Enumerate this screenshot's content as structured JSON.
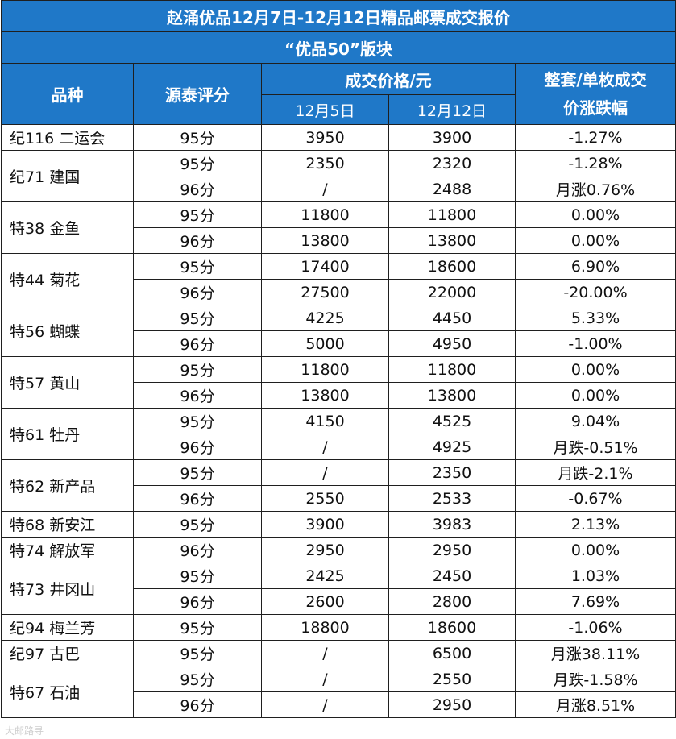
{
  "title": "赵涌优品12月7日-12月12日精品邮票成交报价",
  "subtitle": "“优品50”版块",
  "headers": {
    "variety": "品种",
    "score": "源泰评分",
    "price": "成交价格/元",
    "date1": "12月5日",
    "date2": "12月12日",
    "change_line1": "整套/单枚成交",
    "change_line2": "价涨跌幅"
  },
  "rows": [
    {
      "name": "纪116 二运会",
      "span": 1,
      "score": "95分",
      "p1": "3950",
      "p2": "3900",
      "change": "-1.27%",
      "dir": "neg"
    },
    {
      "name": "纪71 建国",
      "span": 2,
      "score": "95分",
      "p1": "2350",
      "p2": "2320",
      "change": "-1.28%",
      "dir": "neg"
    },
    {
      "name": "",
      "span": 0,
      "score": "96分",
      "p1": "/",
      "p2": "2488",
      "change": "月涨0.76%",
      "dir": "pos"
    },
    {
      "name": "特38 金鱼",
      "span": 2,
      "score": "95分",
      "p1": "11800",
      "p2": "11800",
      "change": "0.00%",
      "dir": "flat"
    },
    {
      "name": "",
      "span": 0,
      "score": "96分",
      "p1": "13800",
      "p2": "13800",
      "change": "0.00%",
      "dir": "flat"
    },
    {
      "name": "特44 菊花",
      "span": 2,
      "score": "95分",
      "p1": "17400",
      "p2": "18600",
      "change": "6.90%",
      "dir": "pos"
    },
    {
      "name": "",
      "span": 0,
      "score": "96分",
      "p1": "27500",
      "p2": "22000",
      "change": "-20.00%",
      "dir": "neg"
    },
    {
      "name": "特56 蝴蝶",
      "span": 2,
      "score": "95分",
      "p1": "4225",
      "p2": "4450",
      "change": "5.33%",
      "dir": "pos"
    },
    {
      "name": "",
      "span": 0,
      "score": "96分",
      "p1": "5000",
      "p2": "4950",
      "change": "-1.00%",
      "dir": "neg"
    },
    {
      "name": "特57 黄山",
      "span": 2,
      "score": "95分",
      "p1": "11800",
      "p2": "11800",
      "change": "0.00%",
      "dir": "flat"
    },
    {
      "name": "",
      "span": 0,
      "score": "96分",
      "p1": "13800",
      "p2": "13800",
      "change": "0.00%",
      "dir": "flat"
    },
    {
      "name": "特61 牡丹",
      "span": 2,
      "score": "95分",
      "p1": "4150",
      "p2": "4525",
      "change": "9.04%",
      "dir": "pos"
    },
    {
      "name": "",
      "span": 0,
      "score": "96分",
      "p1": "/",
      "p2": "4925",
      "change": "月跌-0.51%",
      "dir": "neg"
    },
    {
      "name": "特62 新产品",
      "span": 2,
      "score": "95分",
      "p1": "/",
      "p2": "2350",
      "change": "月跌-2.1%",
      "dir": "neg"
    },
    {
      "name": "",
      "span": 0,
      "score": "96分",
      "p1": "2550",
      "p2": "2533",
      "change": "-0.67%",
      "dir": "neg"
    },
    {
      "name": "特68 新安江",
      "span": 1,
      "score": "95分",
      "p1": "3900",
      "p2": "3983",
      "change": "2.13%",
      "dir": "pos"
    },
    {
      "name": "特74 解放军",
      "span": 1,
      "score": "96分",
      "p1": "2950",
      "p2": "2950",
      "change": "0.00%",
      "dir": "flat"
    },
    {
      "name": "特73 井冈山",
      "span": 2,
      "score": "95分",
      "p1": "2425",
      "p2": "2450",
      "change": "1.03%",
      "dir": "pos"
    },
    {
      "name": "",
      "span": 0,
      "score": "96分",
      "p1": "2600",
      "p2": "2800",
      "change": "7.69%",
      "dir": "pos"
    },
    {
      "name": "纪94 梅兰芳",
      "span": 1,
      "score": "95分",
      "p1": "18800",
      "p2": "18600",
      "change": "-1.06%",
      "dir": "neg"
    },
    {
      "name": "纪97 古巴",
      "span": 1,
      "score": "95分",
      "p1": "/",
      "p2": "6500",
      "change": "月涨38.11%",
      "dir": "pos"
    },
    {
      "name": "特67 石油",
      "span": 2,
      "score": "95分",
      "p1": "/",
      "p2": "2550",
      "change": "月跌-1.58%",
      "dir": "neg"
    },
    {
      "name": "",
      "span": 0,
      "score": "96分",
      "p1": "/",
      "p2": "2950",
      "change": "月涨8.51%",
      "dir": "pos"
    }
  ],
  "colors": {
    "header_bg": "#1f78c8",
    "up": "#e01010",
    "down": "#1a9a3c"
  },
  "watermark": "大邮路寻"
}
